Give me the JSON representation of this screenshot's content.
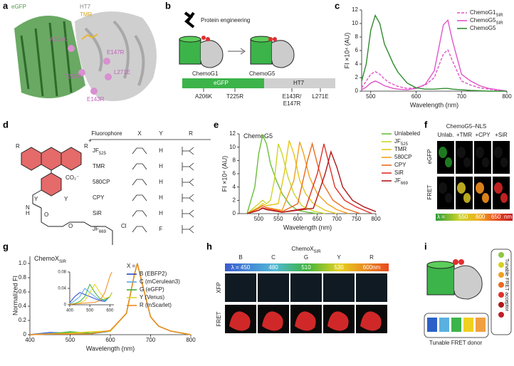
{
  "panel_labels": [
    "a",
    "b",
    "c",
    "d",
    "e",
    "f",
    "g",
    "h",
    "i"
  ],
  "panel_a": {
    "labels": [
      "eGFP",
      "HT7",
      "TMR",
      "A206K",
      "E147R",
      "T225R",
      "L271E",
      "E143R"
    ]
  },
  "panel_b": {
    "heading": "Protein engineering",
    "left": "ChemoG1",
    "right": "ChemoG5",
    "bar": [
      "eGFP",
      "HT7"
    ],
    "mutations": [
      "A206K",
      "T225R",
      "E143R/",
      "E147R",
      "L271E"
    ]
  },
  "panel_d": {
    "structure_labels": [
      "R",
      "R",
      "+",
      "Y",
      "Y",
      "CO₂⁻",
      "N",
      "H",
      "O",
      "O",
      "Cl"
    ],
    "table": {
      "header": [
        "Fluorophore",
        "X",
        "Y",
        "R"
      ],
      "rows": [
        {
          "name": "JF",
          "sub": "525",
          "y": "H"
        },
        {
          "name": "TMR",
          "y": "H"
        },
        {
          "name": "580CP",
          "y": "H"
        },
        {
          "name": "CPY",
          "y": "H"
        },
        {
          "name": "SiR",
          "y": "H"
        },
        {
          "name": "JF",
          "sub": "669",
          "y": "F"
        }
      ]
    }
  },
  "panel_f": {
    "title": "ChemoG5–NLS",
    "columns": [
      "Unlab.",
      "+TMR",
      "+CPY",
      "+SiR"
    ],
    "rows": [
      "eGFP",
      "FRET"
    ],
    "scale": [
      "λ =",
      "550",
      "600",
      "650",
      "nm"
    ]
  },
  "panel_h": {
    "title": "ChemoX",
    "title_sub": "SIR",
    "columns": [
      "B",
      "C",
      "G",
      "Y",
      "R"
    ],
    "scale": [
      "λ = 450",
      "480",
      "510",
      "530",
      "600nm"
    ],
    "rows": [
      "XFP",
      "FRET"
    ]
  },
  "panel_i": {
    "acceptor": "Tunable FRET acceptor",
    "donor": "Tunable FRET donor"
  },
  "chart_data": [
    {
      "type": "line",
      "xlabel": "Wavelength (nm)",
      "ylabel": "FI ×10⁴ (AU)",
      "legend": "upper right",
      "xlim": [
        480,
        800
      ],
      "xticks": [
        500,
        600,
        700,
        800
      ],
      "ylim": [
        0,
        12
      ],
      "yticks": [
        0,
        2,
        4,
        6,
        8,
        10,
        12
      ],
      "x": [
        480,
        490,
        500,
        510,
        520,
        530,
        540,
        550,
        560,
        580,
        600,
        620,
        640,
        660,
        670,
        680,
        700,
        720,
        740,
        760,
        780,
        800
      ],
      "series": [
        {
          "name": "ChemoG1",
          "name_sub": "SIR",
          "color": "#e055c8",
          "dash": true,
          "values": [
            0.5,
            1.5,
            2.5,
            2.9,
            2.5,
            1.8,
            1.3,
            1,
            0.7,
            0.4,
            0.5,
            0.9,
            2,
            5.5,
            6.1,
            4.5,
            1.5,
            0.9,
            0.5,
            0.3,
            0.1,
            0
          ]
        },
        {
          "name": "ChemoG5",
          "name_sub": "SIR",
          "color": "#e055c8",
          "values": [
            0.2,
            0.6,
            1.2,
            1.5,
            1.2,
            0.8,
            0.6,
            0.4,
            0.3,
            0.2,
            0.4,
            1,
            3,
            9.8,
            10.5,
            7.5,
            2.5,
            1.5,
            0.8,
            0.4,
            0.2,
            0
          ]
        },
        {
          "name": "ChemoG5",
          "color": "#2e8b2e",
          "values": [
            1.5,
            4,
            9,
            11.2,
            10,
            7,
            5.5,
            4,
            2.8,
            1.2,
            0.5,
            0.3,
            0.3,
            0.4,
            0.4,
            0.3,
            0.2,
            0.1,
            0.05,
            0,
            0,
            0
          ]
        }
      ]
    },
    {
      "type": "line",
      "title": "ChemoG5",
      "xlabel": "Wavelength (nm)",
      "ylabel": "FI ×10⁴ (AU)",
      "legend": "right",
      "xlim": [
        450,
        800
      ],
      "xticks": [
        500,
        550,
        600,
        650,
        700,
        750,
        800
      ],
      "ylim": [
        0,
        12
      ],
      "yticks": [
        0,
        2,
        4,
        6,
        8,
        10,
        12
      ],
      "series": [
        {
          "name": "Unlabeled",
          "color": "#6abf3a",
          "x": [
            470,
            490,
            500,
            510,
            520,
            530,
            545,
            560,
            580,
            600,
            625,
            650
          ],
          "values": [
            0,
            4,
            9,
            11.8,
            10.5,
            7.5,
            5,
            3,
            1.3,
            0.5,
            0.2,
            0
          ]
        },
        {
          "name": "JF",
          "name_sub": "525",
          "color": "#c9d62a",
          "x": [
            470,
            500,
            510,
            520,
            530,
            540,
            550,
            560,
            575,
            590,
            610,
            640,
            670
          ],
          "values": [
            0,
            1.5,
            2,
            1.5,
            2,
            5,
            10.5,
            9,
            5.5,
            3,
            1.2,
            0.4,
            0
          ]
        },
        {
          "name": "TMR",
          "color": "#e6c619",
          "x": [
            470,
            500,
            510,
            520,
            550,
            565,
            578,
            590,
            605,
            620,
            640,
            670,
            700
          ],
          "values": [
            0,
            1,
            1.5,
            1.2,
            1.5,
            6,
            11,
            9,
            5,
            3,
            1.5,
            0.5,
            0
          ]
        },
        {
          "name": "580CP",
          "color": "#f0a020",
          "x": [
            470,
            500,
            510,
            520,
            560,
            590,
            605,
            615,
            630,
            650,
            675,
            700,
            730
          ],
          "values": [
            0,
            0.8,
            1.2,
            0.9,
            0.5,
            5,
            10.8,
            9,
            5.5,
            3,
            1.5,
            0.6,
            0
          ]
        },
        {
          "name": "CPY",
          "color": "#ec6a1e",
          "x": [
            470,
            500,
            510,
            520,
            560,
            600,
            625,
            637,
            650,
            665,
            690,
            720,
            760
          ],
          "values": [
            0,
            0.8,
            1.2,
            0.9,
            0.3,
            1.5,
            8,
            10.5,
            7.5,
            4.5,
            2,
            0.8,
            0
          ]
        },
        {
          "name": "SiR",
          "color": "#e0302a",
          "x": [
            470,
            500,
            510,
            520,
            560,
            620,
            650,
            667,
            680,
            695,
            720,
            750,
            790
          ],
          "values": [
            0,
            0.5,
            0.9,
            0.7,
            0.2,
            0.8,
            6,
            10.5,
            7.5,
            4,
            2,
            1,
            0
          ]
        },
        {
          "name": "JF",
          "name_sub": "669",
          "color": "#b01818",
          "x": [
            470,
            500,
            510,
            520,
            560,
            640,
            670,
            685,
            700,
            715,
            740,
            770,
            800
          ],
          "values": [
            0,
            0.5,
            0.8,
            0.6,
            0.2,
            0.8,
            6,
            9.3,
            7,
            4,
            2,
            1,
            0.3
          ]
        }
      ]
    },
    {
      "type": "line",
      "title": "ChemoX",
      "title_sub": "SIR",
      "xlabel": "Wavelength (nm)",
      "ylabel": "Normalized FI",
      "legend": "right",
      "legend_title": "X =",
      "xlim": [
        400,
        800
      ],
      "xticks": [
        400,
        500,
        600,
        700,
        800
      ],
      "ylim": [
        0,
        1.1
      ],
      "yticks": [
        0,
        0.2,
        0.4,
        0.6,
        0.8,
        {
          "value": 1,
          "label": "1.0"
        }
      ],
      "x": [
        400,
        450,
        500,
        550,
        600,
        640,
        660,
        667,
        680,
        700,
        720,
        750,
        800
      ],
      "series": [
        {
          "name": "B (EBFP2)",
          "color": "#2747c9",
          "values": [
            0,
            0.03,
            0.02,
            0.01,
            0.05,
            0.3,
            0.85,
            1,
            0.7,
            0.25,
            0.12,
            0.05,
            0
          ]
        },
        {
          "name": "C (mCerulean3)",
          "color": "#5aa8e8",
          "values": [
            0,
            0.02,
            0.03,
            0.01,
            0.05,
            0.3,
            0.85,
            1,
            0.7,
            0.25,
            0.12,
            0.05,
            0
          ]
        },
        {
          "name": "G (eGFP)",
          "color": "#3cb43c",
          "values": [
            0,
            0.01,
            0.04,
            0.02,
            0.05,
            0.3,
            0.85,
            1,
            0.7,
            0.25,
            0.12,
            0.05,
            0
          ]
        },
        {
          "name": "Y (Venus)",
          "color": "#e8d21e",
          "values": [
            0,
            0.01,
            0.02,
            0.04,
            0.05,
            0.3,
            0.85,
            1,
            0.7,
            0.25,
            0.12,
            0.05,
            0
          ]
        },
        {
          "name": "R (mScarlet)",
          "color": "#f08a1e",
          "values": [
            0,
            0.01,
            0.01,
            0.01,
            0.06,
            0.3,
            0.85,
            1,
            0.7,
            0.25,
            0.12,
            0.05,
            0
          ]
        }
      ]
    },
    {
      "type": "line",
      "xlim": [
        400,
        620
      ],
      "xticks": [
        400,
        500,
        600
      ],
      "ylim": [
        0,
        0.08
      ],
      "yticks": [
        0,
        0.04,
        0.08
      ],
      "x": [
        400,
        425,
        450,
        475,
        500,
        525,
        550,
        575,
        600,
        610
      ],
      "series": [
        {
          "color": "#2747c9",
          "values": [
            0.005,
            0.02,
            0.03,
            0.025,
            0.02,
            0.015,
            0.01,
            0.008,
            0.02,
            0.03
          ]
        },
        {
          "color": "#5aa8e8",
          "values": [
            0.002,
            0.01,
            0.02,
            0.04,
            0.03,
            0.02,
            0.012,
            0.01,
            0.02,
            0.03
          ]
        },
        {
          "color": "#3cb43c",
          "values": [
            0.001,
            0.003,
            0.008,
            0.02,
            0.05,
            0.03,
            0.015,
            0.012,
            0.02,
            0.03
          ]
        },
        {
          "color": "#e8d21e",
          "values": [
            0.001,
            0.002,
            0.004,
            0.01,
            0.03,
            0.05,
            0.03,
            0.015,
            0.02,
            0.03
          ]
        },
        {
          "color": "#f08a1e",
          "values": [
            0.001,
            0.002,
            0.003,
            0.004,
            0.005,
            0.006,
            0.01,
            0.03,
            0.07,
            0.08
          ]
        }
      ]
    }
  ]
}
